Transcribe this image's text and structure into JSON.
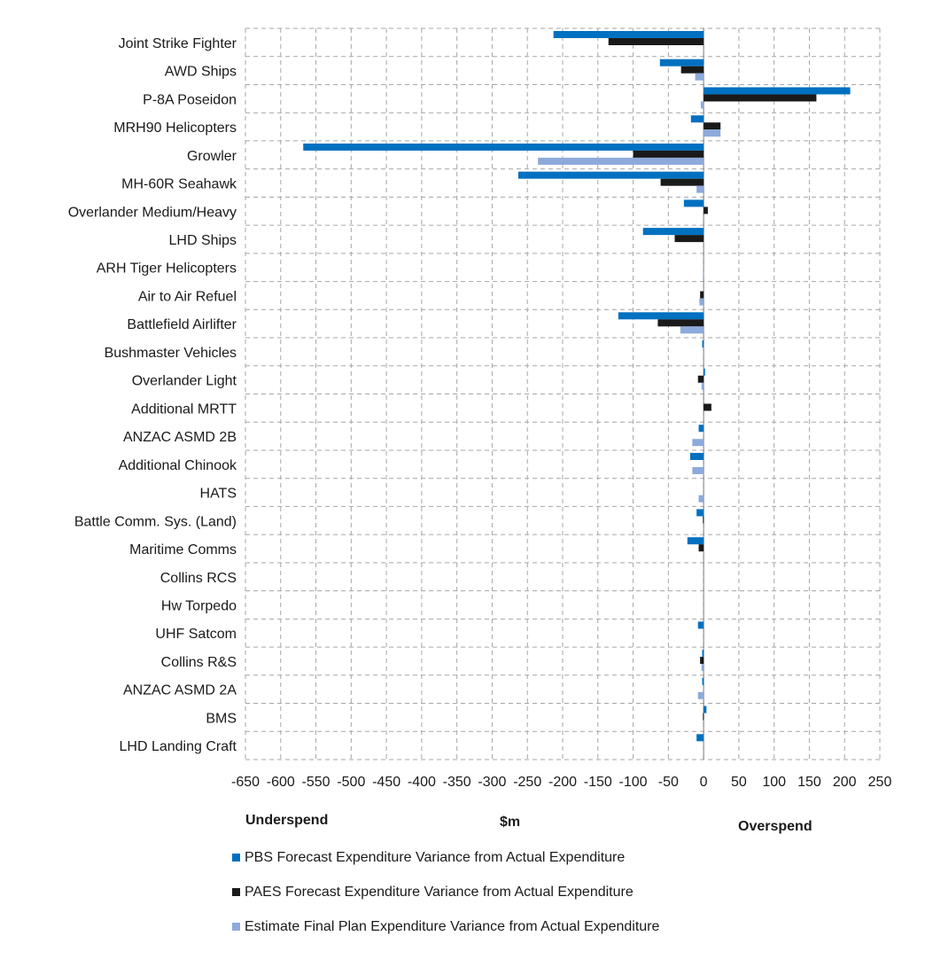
{
  "chart_data": {
    "type": "bar",
    "orientation": "horizontal",
    "categories": [
      "Joint Strike Fighter",
      "AWD Ships",
      "P-8A Poseidon",
      "MRH90 Helicopters",
      "Growler",
      "MH-60R Seahawk",
      "Overlander Medium/Heavy",
      "LHD Ships",
      "ARH Tiger Helicopters",
      "Air to Air Refuel",
      "Battlefield Airlifter",
      "Bushmaster Vehicles",
      "Overlander Light",
      "Additional MRTT",
      "ANZAC ASMD 2B",
      "Additional Chinook",
      "HATS",
      "Battle Comm. Sys. (Land)",
      "Maritime Comms",
      "Collins RCS",
      "Hw Torpedo",
      "UHF Satcom",
      "Collins R&S",
      "ANZAC ASMD 2A",
      "BMS",
      "LHD Landing Craft"
    ],
    "series": [
      {
        "name": "PBS Forecast Expenditure Variance from Actual Expenditure",
        "color": "#0070c0",
        "values": [
          -213,
          -62,
          208,
          -18,
          -568,
          -263,
          -28,
          -86,
          0,
          0,
          -121,
          -2,
          2,
          0,
          -7,
          -19,
          0,
          -10,
          -23,
          0,
          0,
          -8,
          -2,
          -2,
          4,
          -10
        ]
      },
      {
        "name": "PAES Forecast Expenditure Variance from Actual Expenditure",
        "color": "#1a1a1a",
        "values": [
          -135,
          -32,
          160,
          24,
          -100,
          -61,
          6,
          -41,
          0,
          -5,
          -65,
          0,
          -8,
          11,
          0,
          0,
          0,
          -1,
          -7,
          0,
          0,
          0,
          -5,
          0,
          -1,
          0
        ]
      },
      {
        "name": "Estimate Final Plan Expenditure Variance from Actual Expenditure",
        "color": "#8eaadb",
        "values": [
          0,
          -12,
          -4,
          24,
          -235,
          -10,
          0,
          0,
          -1,
          -6,
          -33,
          0,
          -3,
          0,
          -16,
          -16,
          -7,
          0,
          0,
          0,
          0,
          0,
          -3,
          -8,
          0,
          0
        ]
      }
    ],
    "xlim": [
      -650,
      250
    ],
    "xticks": [
      -650,
      -600,
      -550,
      -500,
      -450,
      -400,
      -350,
      -300,
      -250,
      -200,
      -150,
      -100,
      -50,
      0,
      50,
      100,
      150,
      200,
      250
    ],
    "xlabel": "$m",
    "annotations": {
      "left": "Underspend",
      "right": "Overspend"
    },
    "grid": true,
    "legend_position": "bottom"
  }
}
